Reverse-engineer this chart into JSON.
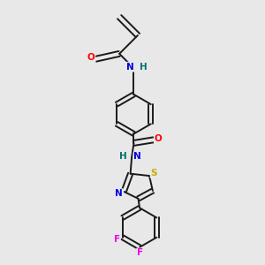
{
  "bg_color": "#e8e8e8",
  "bond_color": "#1a1a1a",
  "atom_colors": {
    "O": "#ff0000",
    "N": "#0000dd",
    "S": "#ccaa00",
    "F": "#ee00ee",
    "H": "#007070",
    "C": "#1a1a1a"
  },
  "figsize": [
    3.0,
    3.0
  ],
  "dpi": 100
}
